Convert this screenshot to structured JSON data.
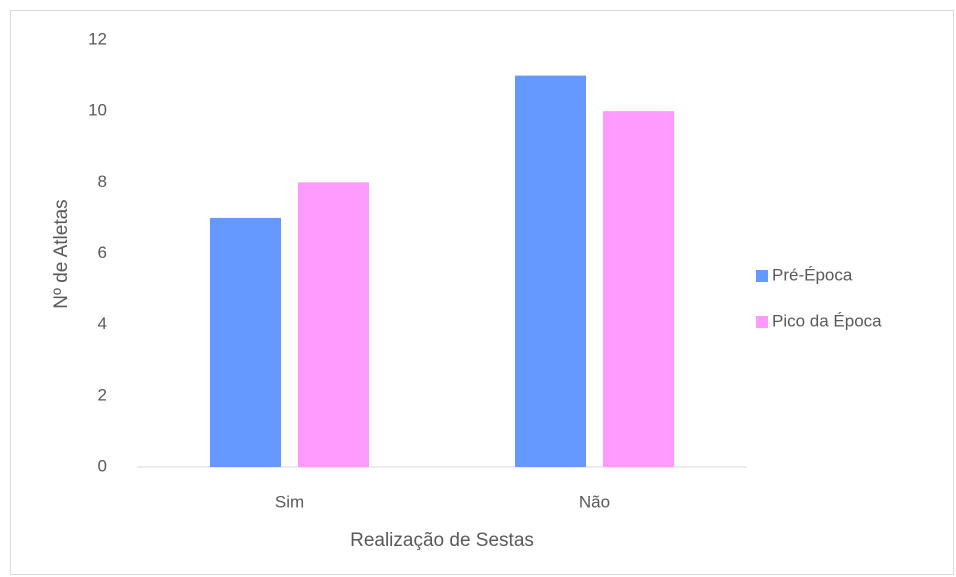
{
  "chart_data": {
    "type": "bar",
    "x_label": "Realização de Sestas",
    "y_label": "Nº de Atletas",
    "categories": [
      "Sim",
      "Não"
    ],
    "series": [
      {
        "name": "Pré-Época",
        "color": "#6699ff",
        "values": [
          7,
          11
        ]
      },
      {
        "name": "Pico da Época",
        "color": "#ff99ff",
        "values": [
          8,
          10
        ]
      }
    ],
    "ylim": [
      0,
      12
    ],
    "yticks": [
      0,
      2,
      4,
      6,
      8,
      10,
      12
    ],
    "grid": false,
    "legend": "right"
  }
}
